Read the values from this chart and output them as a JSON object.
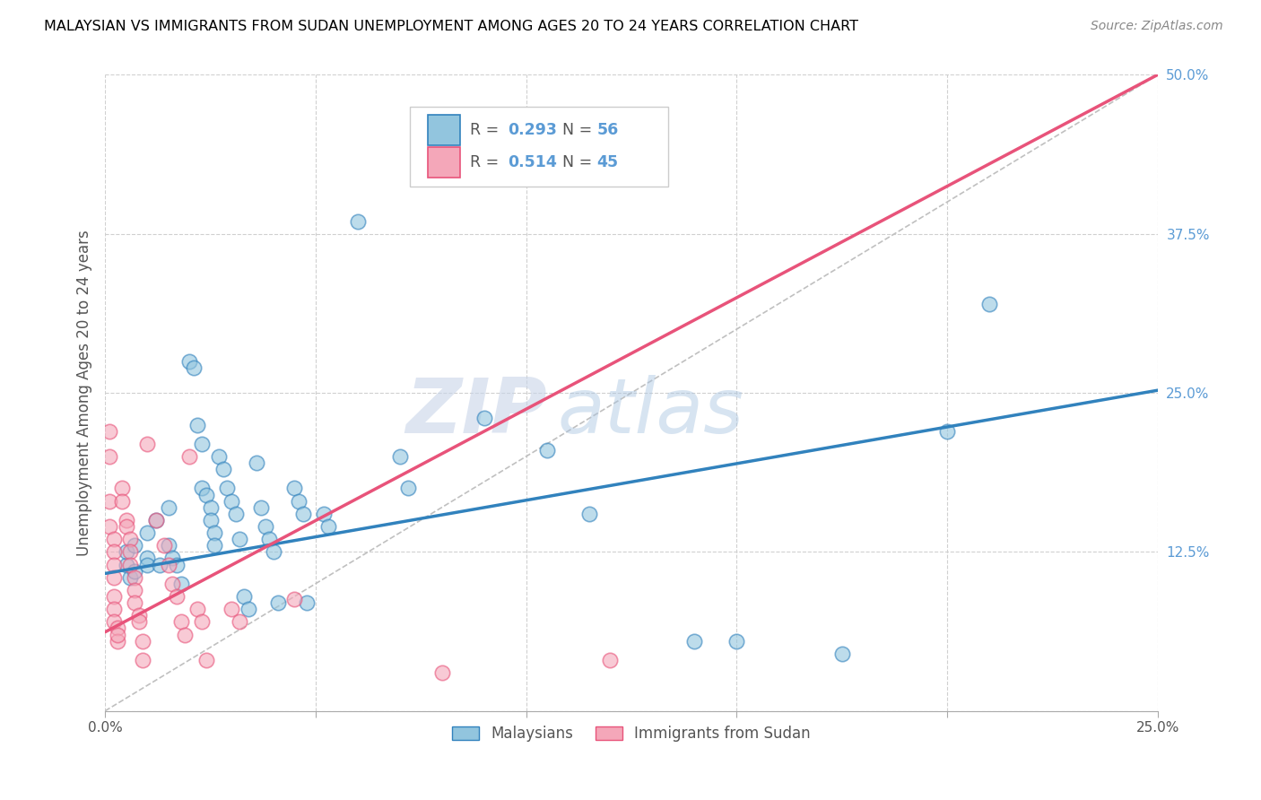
{
  "title": "MALAYSIAN VS IMMIGRANTS FROM SUDAN UNEMPLOYMENT AMONG AGES 20 TO 24 YEARS CORRELATION CHART",
  "source": "Source: ZipAtlas.com",
  "ylabel": "Unemployment Among Ages 20 to 24 years",
  "xlim": [
    0.0,
    0.25
  ],
  "ylim": [
    0.0,
    0.5
  ],
  "xticks": [
    0.0,
    0.05,
    0.1,
    0.15,
    0.2,
    0.25
  ],
  "yticks": [
    0.0,
    0.125,
    0.25,
    0.375,
    0.5
  ],
  "xticklabels": [
    "0.0%",
    "",
    "",
    "",
    "",
    "25.0%"
  ],
  "yticklabels": [
    "",
    "12.5%",
    "25.0%",
    "37.5%",
    "50.0%"
  ],
  "blue_R": "R = 0.293",
  "blue_N": "N = 56",
  "pink_R": "R = 0.514",
  "pink_N": "N = 45",
  "watermark": "ZIPatlas",
  "legend_label1": "Malaysians",
  "legend_label2": "Immigrants from Sudan",
  "blue_color": "#92c5de",
  "pink_color": "#f4a7b9",
  "blue_line_color": "#3182bd",
  "pink_line_color": "#e8537a",
  "blue_scatter": [
    [
      0.005,
      0.115
    ],
    [
      0.005,
      0.125
    ],
    [
      0.006,
      0.105
    ],
    [
      0.007,
      0.13
    ],
    [
      0.007,
      0.11
    ],
    [
      0.01,
      0.14
    ],
    [
      0.01,
      0.12
    ],
    [
      0.01,
      0.115
    ],
    [
      0.012,
      0.15
    ],
    [
      0.013,
      0.115
    ],
    [
      0.015,
      0.16
    ],
    [
      0.015,
      0.13
    ],
    [
      0.016,
      0.12
    ],
    [
      0.017,
      0.115
    ],
    [
      0.018,
      0.1
    ],
    [
      0.02,
      0.275
    ],
    [
      0.021,
      0.27
    ],
    [
      0.022,
      0.225
    ],
    [
      0.023,
      0.21
    ],
    [
      0.023,
      0.175
    ],
    [
      0.024,
      0.17
    ],
    [
      0.025,
      0.16
    ],
    [
      0.025,
      0.15
    ],
    [
      0.026,
      0.14
    ],
    [
      0.026,
      0.13
    ],
    [
      0.027,
      0.2
    ],
    [
      0.028,
      0.19
    ],
    [
      0.029,
      0.175
    ],
    [
      0.03,
      0.165
    ],
    [
      0.031,
      0.155
    ],
    [
      0.032,
      0.135
    ],
    [
      0.033,
      0.09
    ],
    [
      0.034,
      0.08
    ],
    [
      0.036,
      0.195
    ],
    [
      0.037,
      0.16
    ],
    [
      0.038,
      0.145
    ],
    [
      0.039,
      0.135
    ],
    [
      0.04,
      0.125
    ],
    [
      0.041,
      0.085
    ],
    [
      0.045,
      0.175
    ],
    [
      0.046,
      0.165
    ],
    [
      0.047,
      0.155
    ],
    [
      0.048,
      0.085
    ],
    [
      0.052,
      0.155
    ],
    [
      0.053,
      0.145
    ],
    [
      0.06,
      0.385
    ],
    [
      0.07,
      0.2
    ],
    [
      0.072,
      0.175
    ],
    [
      0.09,
      0.23
    ],
    [
      0.105,
      0.205
    ],
    [
      0.115,
      0.155
    ],
    [
      0.14,
      0.055
    ],
    [
      0.15,
      0.055
    ],
    [
      0.2,
      0.22
    ],
    [
      0.21,
      0.32
    ],
    [
      0.175,
      0.045
    ]
  ],
  "pink_scatter": [
    [
      0.001,
      0.22
    ],
    [
      0.001,
      0.165
    ],
    [
      0.001,
      0.2
    ],
    [
      0.001,
      0.145
    ],
    [
      0.002,
      0.135
    ],
    [
      0.002,
      0.125
    ],
    [
      0.002,
      0.115
    ],
    [
      0.002,
      0.105
    ],
    [
      0.002,
      0.09
    ],
    [
      0.002,
      0.08
    ],
    [
      0.002,
      0.07
    ],
    [
      0.003,
      0.065
    ],
    [
      0.003,
      0.055
    ],
    [
      0.003,
      0.06
    ],
    [
      0.004,
      0.175
    ],
    [
      0.004,
      0.165
    ],
    [
      0.005,
      0.15
    ],
    [
      0.005,
      0.145
    ],
    [
      0.006,
      0.135
    ],
    [
      0.006,
      0.125
    ],
    [
      0.006,
      0.115
    ],
    [
      0.007,
      0.105
    ],
    [
      0.007,
      0.095
    ],
    [
      0.007,
      0.085
    ],
    [
      0.008,
      0.075
    ],
    [
      0.008,
      0.07
    ],
    [
      0.009,
      0.055
    ],
    [
      0.009,
      0.04
    ],
    [
      0.01,
      0.21
    ],
    [
      0.012,
      0.15
    ],
    [
      0.014,
      0.13
    ],
    [
      0.015,
      0.115
    ],
    [
      0.016,
      0.1
    ],
    [
      0.017,
      0.09
    ],
    [
      0.018,
      0.07
    ],
    [
      0.019,
      0.06
    ],
    [
      0.02,
      0.2
    ],
    [
      0.022,
      0.08
    ],
    [
      0.023,
      0.07
    ],
    [
      0.024,
      0.04
    ],
    [
      0.03,
      0.08
    ],
    [
      0.032,
      0.07
    ],
    [
      0.045,
      0.088
    ],
    [
      0.08,
      0.03
    ],
    [
      0.12,
      0.04
    ]
  ],
  "blue_line_x": [
    0.0,
    0.25
  ],
  "blue_line_y": [
    0.108,
    0.252
  ],
  "pink_line_x": [
    0.0,
    0.25
  ],
  "pink_line_y": [
    0.062,
    0.5
  ],
  "diag_line_x": [
    0.0,
    0.25
  ],
  "diag_line_y": [
    0.0,
    0.5
  ]
}
